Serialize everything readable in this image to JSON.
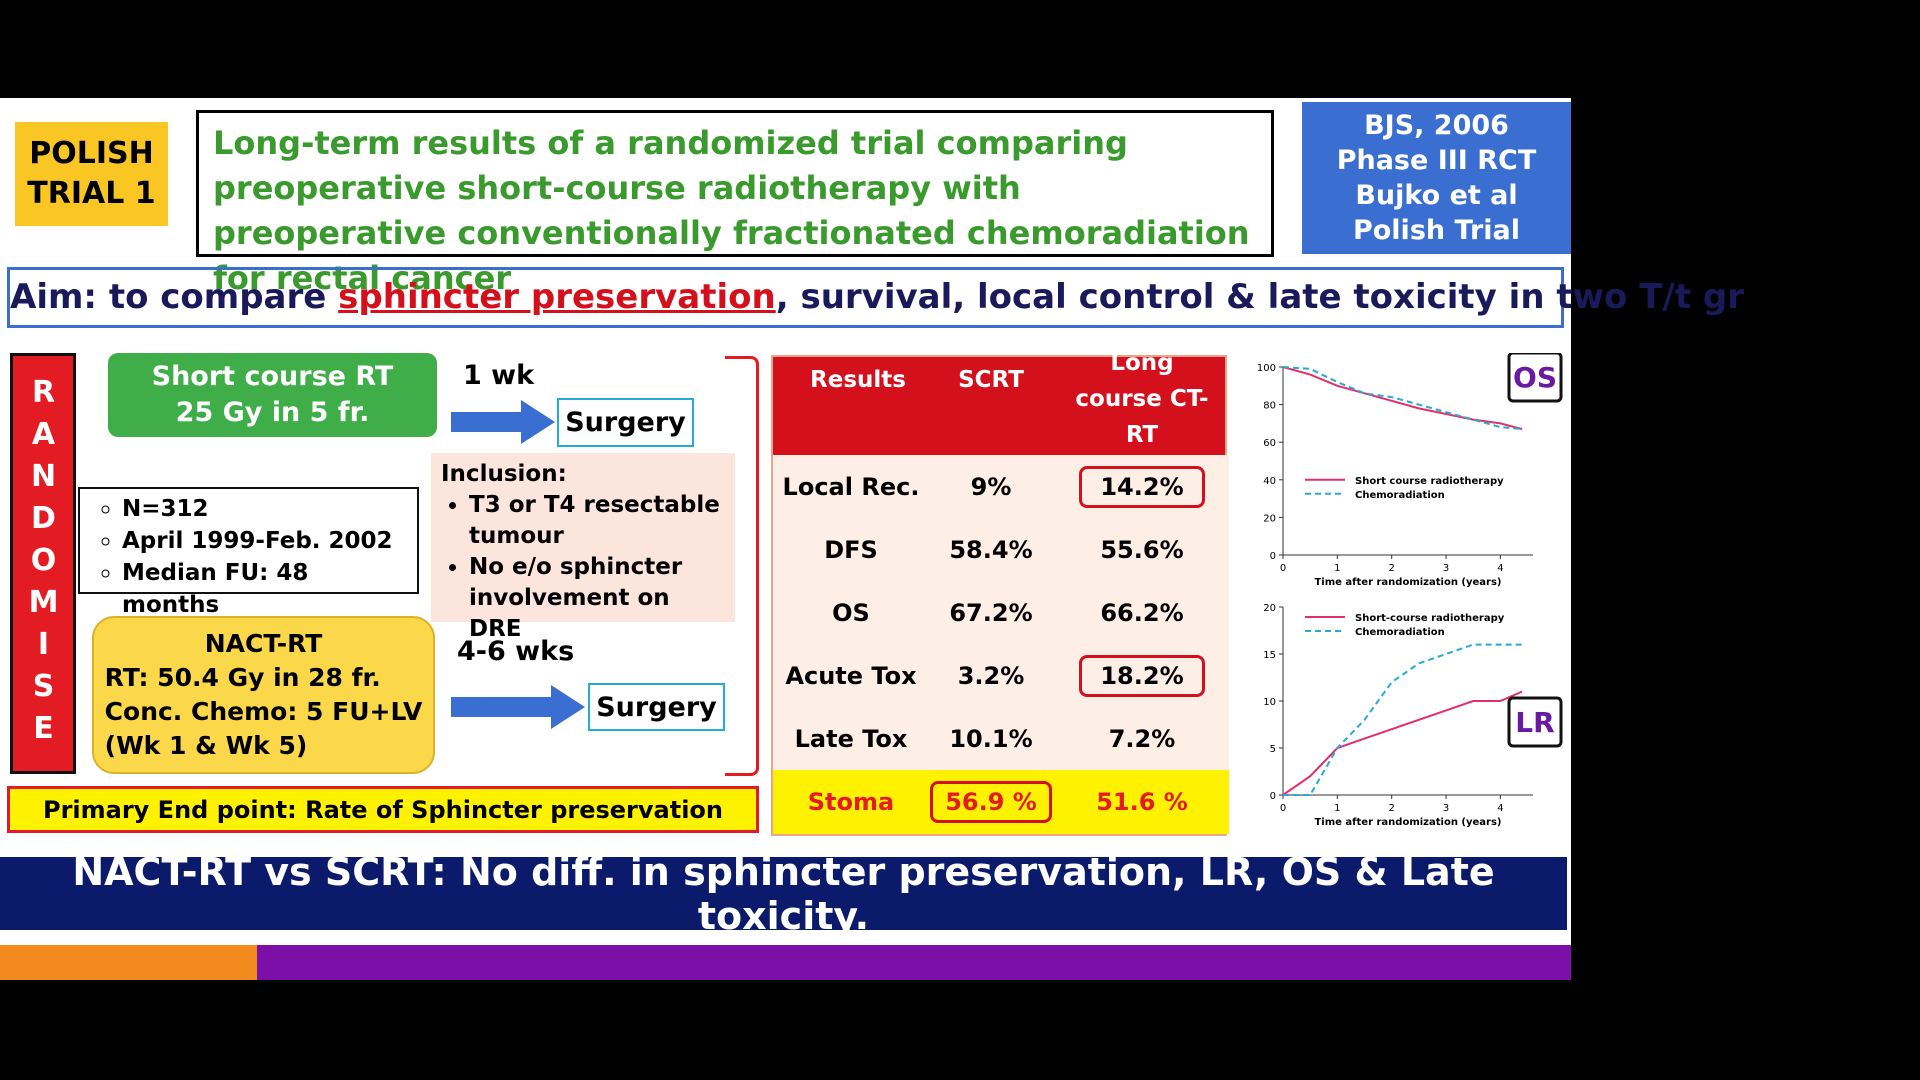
{
  "header": {
    "badge": [
      "POLISH",
      "TRIAL 1"
    ],
    "title": "Long-term results of a randomized trial comparing preoperative short-course radiotherapy with preoperative conventionally fractionated chemoradiation for rectal cancer",
    "source": [
      "BJS, 2006",
      "Phase III RCT",
      "Bujko et al",
      "Polish Trial"
    ]
  },
  "aim": {
    "prefix": "Aim: to compare ",
    "highlight": "sphincter preservation",
    "suffix": ", survival, local control & late toxicity in two T/t gr"
  },
  "design": {
    "randomise": "RANDOMISE",
    "arm1": {
      "lines": [
        "Short course RT",
        "25 Gy in 5 fr."
      ],
      "interval": "1 wk",
      "outcome": "Surgery"
    },
    "population": [
      "N=312",
      "April 1999-Feb. 2002",
      "Median FU: 48 months"
    ],
    "inclusion": {
      "title": "Inclusion:",
      "items": [
        "T3 or T4 resectable tumour",
        "No e/o sphincter involvement on DRE"
      ]
    },
    "arm2": {
      "lines": [
        "NACT-RT",
        "RT: 50.4 Gy in 28 fr.",
        "Conc. Chemo: 5 FU+LV",
        "(Wk 1 & Wk 5)"
      ],
      "interval": "4-6 wks",
      "outcome": "Surgery"
    },
    "endpoint": "Primary End point: Rate of Sphincter preservation"
  },
  "table": {
    "header": [
      "Results",
      "SCRT",
      "Long course CT-RT"
    ],
    "rows": [
      [
        "Local Rec.",
        "9%",
        "14.2%"
      ],
      [
        "DFS",
        "58.4%",
        "55.6%"
      ],
      [
        "OS",
        "67.2%",
        "66.2%"
      ],
      [
        "Acute Tox",
        "3.2%",
        "18.2%"
      ],
      [
        "Late Tox",
        "10.1%",
        "7.2%"
      ],
      [
        "Stoma",
        "56.9 %",
        "51.6 %"
      ]
    ]
  },
  "conclusion": "NACT-RT vs SCRT: No diff. in sphincter preservation, LR, OS & Late toxicity.",
  "chart_data": [
    {
      "type": "line",
      "label": "OS",
      "x_label": "Time after randomization (years)",
      "x": [
        0,
        0.5,
        1,
        1.5,
        2,
        2.5,
        3,
        3.5,
        4,
        4.4
      ],
      "xlim": [
        0,
        4.6
      ],
      "xticks": [
        0,
        1,
        2,
        3,
        4
      ],
      "ylim": [
        0,
        100
      ],
      "yticks": [
        0,
        20,
        40,
        60,
        80,
        100
      ],
      "series": [
        {
          "name": "Short course radiotherapy",
          "color": "#e0306a",
          "dash": false,
          "values": [
            100,
            96,
            90,
            86,
            82,
            78,
            75,
            72,
            70,
            67
          ]
        },
        {
          "name": "Chemoradiation",
          "color": "#29a9d8",
          "dash": true,
          "values": [
            100,
            99,
            92,
            86,
            84,
            80,
            76,
            72,
            68,
            67
          ]
        }
      ]
    },
    {
      "type": "line",
      "label": "LR",
      "x_label": "Time after randomization (years)",
      "x": [
        0,
        0.5,
        1,
        1.5,
        2,
        2.5,
        3,
        3.5,
        4,
        4.4
      ],
      "xlim": [
        0,
        4.6
      ],
      "xticks": [
        0,
        1,
        2,
        3,
        4
      ],
      "ylim": [
        0,
        20
      ],
      "yticks": [
        0,
        5,
        10,
        15,
        20
      ],
      "series": [
        {
          "name": "Short-course radiotherapy",
          "color": "#e0306a",
          "dash": false,
          "values": [
            0,
            2,
            5,
            6,
            7,
            8,
            9,
            10,
            10,
            11
          ]
        },
        {
          "name": "Chemoradiation",
          "color": "#29a9d8",
          "dash": true,
          "values": [
            0,
            0,
            5,
            8,
            12,
            14,
            15,
            16,
            16,
            16
          ]
        }
      ]
    }
  ]
}
